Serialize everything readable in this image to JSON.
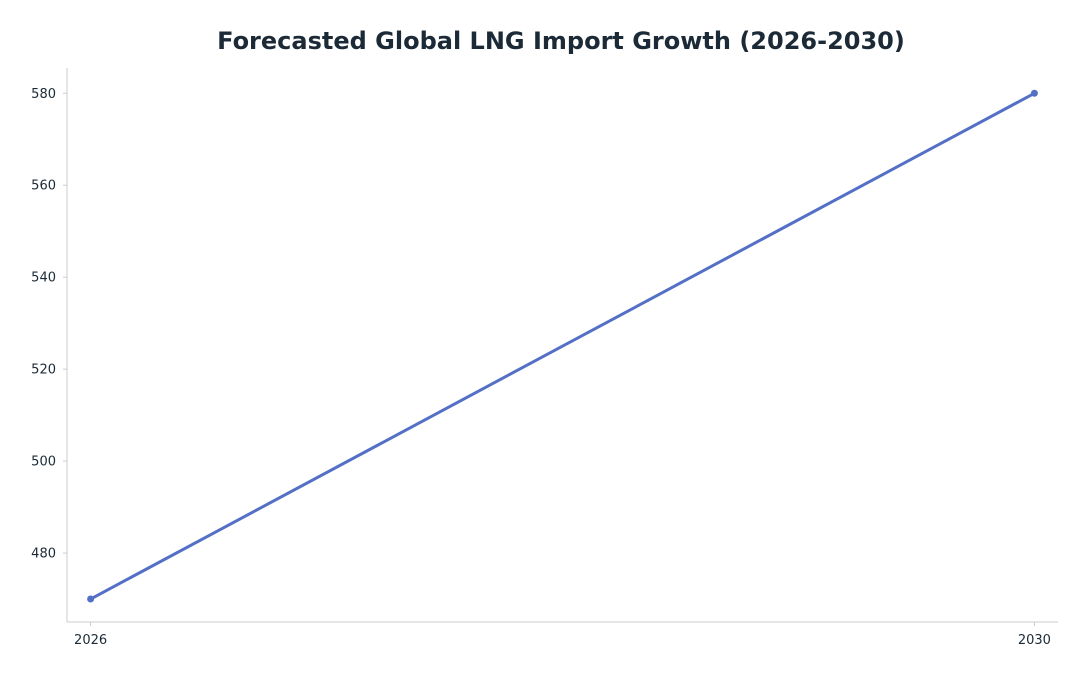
{
  "chart_data": {
    "type": "line",
    "title": "Forecasted Global LNG Import Growth (2026-2030)",
    "xlabel": "",
    "ylabel": "",
    "x": [
      2026,
      2030
    ],
    "series": [
      {
        "values": [
          470,
          580
        ],
        "color": "#5470c6"
      }
    ],
    "xlim": [
      2025.9,
      2030.1
    ],
    "ylim": [
      465,
      585.5
    ],
    "x_ticks": [
      2026,
      2030
    ],
    "y_ticks": [
      480,
      500,
      520,
      540,
      560,
      580
    ],
    "grid": false,
    "legend": "none"
  }
}
